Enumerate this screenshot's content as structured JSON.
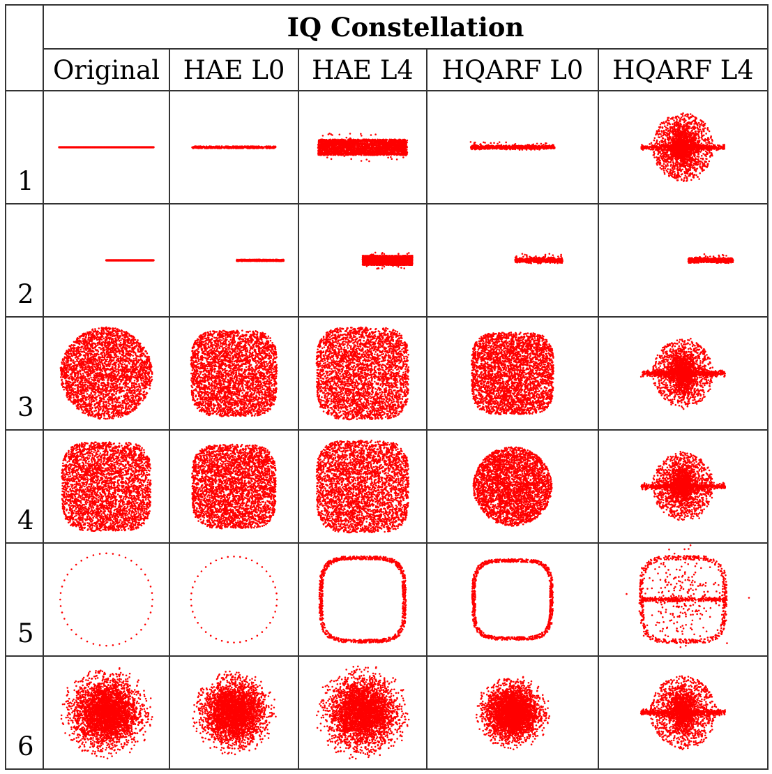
{
  "title": "IQ Constellation",
  "columns": [
    {
      "label": "Original",
      "key": "orig"
    },
    {
      "label": "HAE L0",
      "key": "hae0"
    },
    {
      "label": "HAE L4",
      "key": "hae4"
    },
    {
      "label": "HQARF L0",
      "key": "hq0"
    },
    {
      "label": "HQARF L4",
      "key": "hq4"
    }
  ],
  "rows": [
    {
      "label": "1",
      "key": "r1"
    },
    {
      "label": "2",
      "key": "r2"
    },
    {
      "label": "3",
      "key": "r3"
    },
    {
      "label": "4",
      "key": "r4"
    },
    {
      "label": "5",
      "key": "r5"
    },
    {
      "label": "6",
      "key": "r6"
    }
  ],
  "point_color": "#ff0000",
  "border_color": "#333333",
  "chart_data": {
    "type": "scatter",
    "title": "IQ Constellation",
    "xlabel": "",
    "ylabel": "",
    "grid": false,
    "panels": [
      {
        "row": "1",
        "column": "Original",
        "pattern": "line",
        "x_range": [
          -0.9,
          0.9
        ],
        "y": 0
      },
      {
        "row": "1",
        "column": "HAE L0",
        "pattern": "line-noisy",
        "x_range": [
          -0.8,
          0.8
        ],
        "y_spread": 0.04
      },
      {
        "row": "1",
        "column": "HAE L4",
        "pattern": "band",
        "x_range": [
          -0.85,
          0.85
        ],
        "y_spread": 0.3
      },
      {
        "row": "1",
        "column": "HQARF L0",
        "pattern": "line-scatter",
        "x_range": [
          -0.8,
          0.8
        ],
        "y_spread": 0.05
      },
      {
        "row": "1",
        "column": "HQARF L4",
        "pattern": "line-cloud",
        "x_range": [
          -0.8,
          0.8
        ],
        "cloud_radius": 0.65
      },
      {
        "row": "2",
        "column": "Original",
        "pattern": "line",
        "x_range": [
          0.0,
          0.9
        ],
        "y": 0
      },
      {
        "row": "2",
        "column": "HAE L0",
        "pattern": "line-noisy",
        "x_range": [
          0.05,
          0.95
        ],
        "y_spread": 0.03
      },
      {
        "row": "2",
        "column": "HAE L4",
        "pattern": "band",
        "x_range": [
          0.0,
          0.95
        ],
        "y_spread": 0.18
      },
      {
        "row": "2",
        "column": "HQARF L0",
        "pattern": "line-scatter",
        "x_range": [
          0.05,
          0.95
        ],
        "y_spread": 0.06
      },
      {
        "row": "2",
        "column": "HQARF L4",
        "pattern": "line-scatter",
        "x_range": [
          0.1,
          0.95
        ],
        "y_spread": 0.06
      },
      {
        "row": "3",
        "column": "Original",
        "pattern": "disk",
        "radius": 0.88
      },
      {
        "row": "3",
        "column": "HAE L0",
        "pattern": "rounded-square",
        "radius": 0.82
      },
      {
        "row": "3",
        "column": "HAE L4",
        "pattern": "rounded-square",
        "radius": 0.88
      },
      {
        "row": "3",
        "column": "HQARF L0",
        "pattern": "rounded-square",
        "radius": 0.78
      },
      {
        "row": "3",
        "column": "HQARF L4",
        "pattern": "line-cloud",
        "x_range": [
          -0.8,
          0.8
        ],
        "cloud_radius": 0.65
      },
      {
        "row": "4",
        "column": "Original",
        "pattern": "rounded-square",
        "radius": 0.85
      },
      {
        "row": "4",
        "column": "HAE L0",
        "pattern": "rounded-square",
        "radius": 0.8
      },
      {
        "row": "4",
        "column": "HAE L4",
        "pattern": "rounded-square",
        "radius": 0.88
      },
      {
        "row": "4",
        "column": "HQARF L0",
        "pattern": "disk",
        "radius": 0.75
      },
      {
        "row": "4",
        "column": "HQARF L4",
        "pattern": "line-cloud",
        "x_range": [
          -0.8,
          0.8
        ],
        "cloud_radius": 0.65
      },
      {
        "row": "5",
        "column": "Original",
        "pattern": "ring",
        "radius": 0.88
      },
      {
        "row": "5",
        "column": "HAE L0",
        "pattern": "ring",
        "radius": 0.82
      },
      {
        "row": "5",
        "column": "HAE L4",
        "pattern": "square-ring",
        "radius": 0.88
      },
      {
        "row": "5",
        "column": "HQARF L0",
        "pattern": "square-ring",
        "radius": 0.82
      },
      {
        "row": "5",
        "column": "HQARF L4",
        "pattern": "square-ring-cloud",
        "radius": 0.88
      },
      {
        "row": "6",
        "column": "Original",
        "pattern": "gaussian",
        "radius": 0.9
      },
      {
        "row": "6",
        "column": "HAE L0",
        "pattern": "gaussian",
        "radius": 0.82
      },
      {
        "row": "6",
        "column": "HAE L4",
        "pattern": "gaussian",
        "radius": 0.92
      },
      {
        "row": "6",
        "column": "HQARF L0",
        "pattern": "gaussian",
        "radius": 0.72
      },
      {
        "row": "6",
        "column": "HQARF L4",
        "pattern": "line-cloud",
        "x_range": [
          -0.8,
          0.8
        ],
        "cloud_radius": 0.7
      }
    ]
  }
}
